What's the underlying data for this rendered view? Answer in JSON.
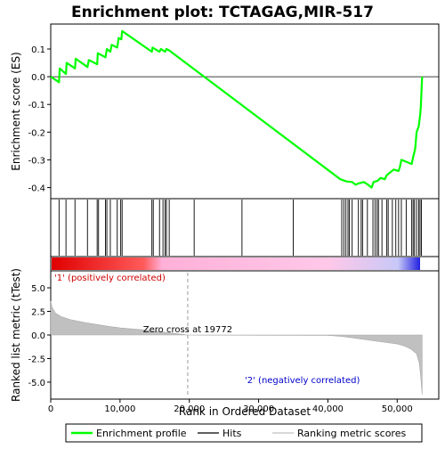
{
  "chart_data": {
    "type": "line",
    "title": "Enrichment plot: TCTAGAG,MIR-517",
    "es_panel": {
      "ylabel": "Enrichment score (ES)",
      "ylim": [
        -0.44,
        0.19
      ],
      "yticks": [
        -0.4,
        -0.3,
        -0.2,
        -0.1,
        0.0,
        0.1
      ],
      "ytick_labels": [
        "-0.4",
        "-0.3",
        "-0.2",
        "-0.1",
        "0.0",
        "0.1"
      ],
      "series": [
        {
          "name": "Enrichment profile",
          "color": "#00ff00",
          "x": [
            0,
            1200,
            1300,
            2200,
            2300,
            3500,
            3600,
            5300,
            5500,
            6700,
            6800,
            7900,
            8100,
            8600,
            8800,
            9600,
            9800,
            10200,
            10300,
            14600,
            14700,
            15700,
            15900,
            16500,
            16700,
            17100,
            41800,
            42700,
            43500,
            44000,
            44400,
            45200,
            45800,
            46300,
            46600,
            47200,
            47600,
            48200,
            48500,
            49500,
            50200,
            50400,
            50600,
            52100,
            52300,
            52600,
            52800,
            53100,
            53300,
            53400,
            53600
          ],
          "y": [
            0.0,
            -0.02,
            0.03,
            0.01,
            0.05,
            0.03,
            0.065,
            0.035,
            0.06,
            0.045,
            0.085,
            0.07,
            0.1,
            0.09,
            0.115,
            0.105,
            0.14,
            0.135,
            0.165,
            0.09,
            0.105,
            0.09,
            0.1,
            0.09,
            0.1,
            0.095,
            -0.37,
            -0.378,
            -0.38,
            -0.39,
            -0.385,
            -0.38,
            -0.39,
            -0.4,
            -0.38,
            -0.375,
            -0.365,
            -0.37,
            -0.355,
            -0.335,
            -0.34,
            -0.325,
            -0.3,
            -0.315,
            -0.29,
            -0.26,
            -0.2,
            -0.18,
            -0.14,
            -0.11,
            0.0
          ]
        }
      ]
    },
    "hits_panel": {
      "hits_color": "#000000",
      "hit_positions": [
        1200,
        2200,
        3500,
        5300,
        6700,
        6900,
        7900,
        8100,
        8600,
        9600,
        10100,
        10300,
        14600,
        14800,
        15700,
        16200,
        16500,
        16700,
        17100,
        20700,
        27600,
        35000,
        42000,
        42300,
        42600,
        42900,
        43100,
        43500,
        44400,
        44800,
        45000,
        45700,
        46500,
        46800,
        47100,
        47300,
        47800,
        48500,
        48700,
        49300,
        49800,
        50200,
        50600,
        51300,
        52100,
        52300,
        52500,
        52800,
        53100,
        53300,
        53500
      ]
    },
    "ranking_bar": {
      "gradient_stops": [
        "#e00000",
        "#ff5a5a",
        "#ffb0d8",
        "#ffc8e8",
        "#c8c8f8",
        "#2020e0"
      ]
    },
    "metric_panel": {
      "ylabel": "Ranked list metric (tTest)",
      "ylim": [
        -6.8,
        6.8
      ],
      "yticks": [
        -5.0,
        -2.5,
        0.0,
        2.5,
        5.0
      ],
      "ytick_labels": [
        "-5.0",
        "-2.5",
        "0.0",
        "2.5",
        "5.0"
      ],
      "fill_color": "#c0c0c0",
      "x": [
        0,
        200,
        700,
        1500,
        3000,
        5000,
        8000,
        10000,
        14000,
        17000,
        19772,
        22000,
        30000,
        40000,
        42000,
        44000,
        46000,
        48000,
        50000,
        51000,
        52000,
        52800,
        53200,
        53400,
        53600
      ],
      "y": [
        3.6,
        2.9,
        2.3,
        1.95,
        1.6,
        1.3,
        0.95,
        0.75,
        0.5,
        0.25,
        0.0,
        -0.02,
        -0.03,
        -0.05,
        -0.15,
        -0.35,
        -0.55,
        -0.75,
        -0.95,
        -1.15,
        -1.5,
        -2.0,
        -3.0,
        -4.5,
        -6.3
      ],
      "zero_cross_label": "Zero cross at 19772",
      "zero_cross_x": 19772,
      "pos_label": "'1' (positively correlated)",
      "neg_label": "'2' (negatively correlated)",
      "pos_label_color": "#cc0000",
      "neg_label_color": "#0000cc"
    },
    "xaxis": {
      "label": "Rank in Ordered Dataset",
      "xlim": [
        0,
        56000
      ],
      "ticks": [
        0,
        10000,
        20000,
        30000,
        40000,
        50000
      ],
      "tick_labels": [
        "0",
        "10,000",
        "20,000",
        "30,000",
        "40,000",
        "50,000"
      ]
    },
    "legend": {
      "placement": "bottom",
      "entries": [
        {
          "label": "Enrichment profile",
          "color": "#00ff00",
          "kind": "line"
        },
        {
          "label": "Hits",
          "color": "#000000",
          "kind": "line"
        },
        {
          "label": "Ranking metric scores",
          "color": "#c0c0c0",
          "kind": "line"
        }
      ]
    }
  }
}
